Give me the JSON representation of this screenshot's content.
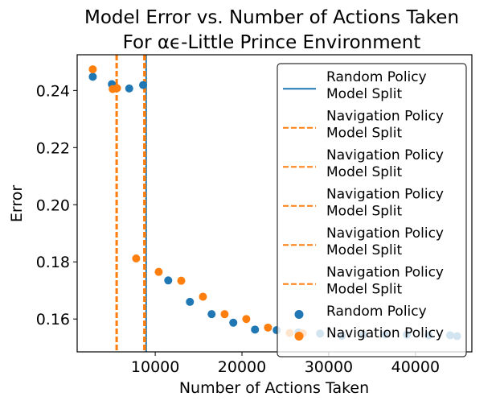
{
  "chart_data": {
    "type": "scatter",
    "title_lines": [
      "Model Error vs. Number of Actions Taken",
      "For αϵ-Little Prince Environment"
    ],
    "xlabel": "Number of Actions Taken",
    "ylabel": "Error",
    "xlim": [
      1000,
      46500
    ],
    "ylim": [
      0.1485,
      0.2525
    ],
    "x_ticks": [
      10000,
      20000,
      30000,
      40000
    ],
    "x_tick_labels": [
      "10000",
      "20000",
      "30000",
      "40000"
    ],
    "y_ticks": [
      0.16,
      0.18,
      0.2,
      0.22,
      0.24
    ],
    "y_tick_labels": [
      "0.16",
      "0.18",
      "0.20",
      "0.22",
      "0.24"
    ],
    "grid": false,
    "legend_position": "upper right",
    "colors": {
      "random": "#1f77b4",
      "navigation": "#ff7f0e"
    },
    "vlines": [
      {
        "name": "Random Policy\nModel Split",
        "x": 8950,
        "color": "#1f77b4",
        "style": "solid"
      },
      {
        "name": "Navigation Policy\nModel Split",
        "x": 5500,
        "color": "#ff7f0e",
        "style": "dashed"
      },
      {
        "name": "Navigation Policy\nModel Split",
        "x": 5600,
        "color": "#ff7f0e",
        "style": "dashed"
      },
      {
        "name": "Navigation Policy\nModel Split",
        "x": 8700,
        "color": "#ff7f0e",
        "style": "dashed"
      },
      {
        "name": "Navigation Policy\nModel Split",
        "x": 8800,
        "color": "#ff7f0e",
        "style": "dashed"
      },
      {
        "name": "Navigation Policy\nModel Split",
        "x": 8850,
        "color": "#ff7f0e",
        "style": "dashed"
      }
    ],
    "series": [
      {
        "name": "Random Policy",
        "color": "#1f77b4",
        "points": [
          [
            2800,
            0.2448
          ],
          [
            5000,
            0.2422
          ],
          [
            7000,
            0.2407
          ],
          [
            8600,
            0.2419
          ],
          [
            11500,
            0.1735
          ],
          [
            14000,
            0.166
          ],
          [
            16500,
            0.1617
          ],
          [
            19000,
            0.1587
          ],
          [
            21500,
            0.1563
          ],
          [
            24000,
            0.1561
          ],
          [
            26500,
            0.1553
          ],
          [
            29000,
            0.1549
          ],
          [
            31500,
            0.1541
          ],
          [
            34000,
            0.1545
          ],
          [
            36500,
            0.1546
          ],
          [
            39000,
            0.1545
          ],
          [
            41500,
            0.1543
          ],
          [
            44000,
            0.1543
          ],
          [
            44800,
            0.154
          ]
        ]
      },
      {
        "name": "Navigation Policy",
        "color": "#ff7f0e",
        "points": [
          [
            2800,
            0.2474
          ],
          [
            5100,
            0.2405
          ],
          [
            5600,
            0.2408
          ],
          [
            7800,
            0.1812
          ],
          [
            10400,
            0.1765
          ],
          [
            13000,
            0.1734
          ],
          [
            15500,
            0.1678
          ],
          [
            18000,
            0.1617
          ],
          [
            20500,
            0.16
          ],
          [
            23000,
            0.157
          ],
          [
            25500,
            0.1551
          ],
          [
            27000,
            0.155
          ]
        ]
      }
    ]
  }
}
